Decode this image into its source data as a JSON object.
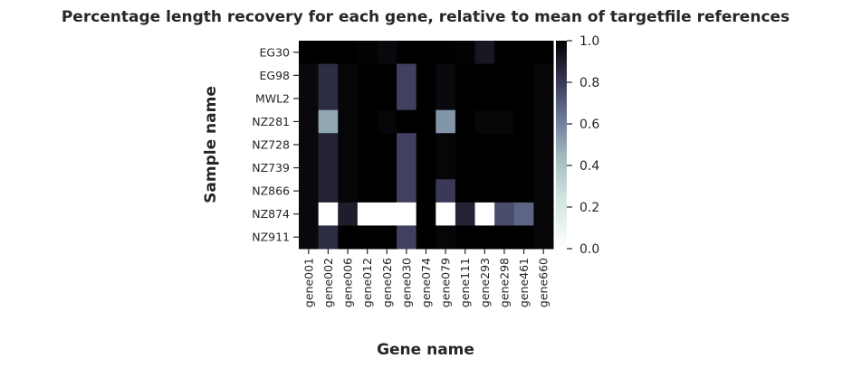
{
  "chart_data": {
    "type": "heatmap",
    "title": "Percentage length recovery for each gene, relative to mean of targetfile references",
    "xlabel": "Gene name",
    "ylabel": "Sample name",
    "x_categories": [
      "gene001",
      "gene002",
      "gene006",
      "gene012",
      "gene026",
      "gene030",
      "gene074",
      "gene079",
      "gene111",
      "gene293",
      "gene298",
      "gene461",
      "gene660"
    ],
    "y_categories": [
      "EG30",
      "EG98",
      "MWL2",
      "NZ281",
      "NZ728",
      "NZ739",
      "NZ866",
      "NZ874",
      "NZ911"
    ],
    "values": [
      [
        1.0,
        1.0,
        1.0,
        0.99,
        0.97,
        1.0,
        1.0,
        1.0,
        0.99,
        0.92,
        1.0,
        1.0,
        1.0
      ],
      [
        0.97,
        0.85,
        0.98,
        1.0,
        1.0,
        0.78,
        1.0,
        0.97,
        1.0,
        1.0,
        1.0,
        1.0,
        0.98
      ],
      [
        0.97,
        0.85,
        0.98,
        1.0,
        1.0,
        0.78,
        1.0,
        0.97,
        1.0,
        1.0,
        1.0,
        1.0,
        0.98
      ],
      [
        0.97,
        0.5,
        0.98,
        1.0,
        0.98,
        1.0,
        1.0,
        0.55,
        1.0,
        0.98,
        0.98,
        1.0,
        0.98
      ],
      [
        0.97,
        0.88,
        0.98,
        1.0,
        1.0,
        0.78,
        1.0,
        0.98,
        1.0,
        1.0,
        1.0,
        1.0,
        0.98
      ],
      [
        0.97,
        0.88,
        0.98,
        1.0,
        1.0,
        0.78,
        1.0,
        0.98,
        1.0,
        1.0,
        1.0,
        1.0,
        0.98
      ],
      [
        0.97,
        0.88,
        0.98,
        1.0,
        1.0,
        0.78,
        1.0,
        0.8,
        1.0,
        1.0,
        1.0,
        1.0,
        0.98
      ],
      [
        0.97,
        0.0,
        0.9,
        0.0,
        0.0,
        0.0,
        1.0,
        0.0,
        0.88,
        0.0,
        0.75,
        0.68,
        0.98
      ],
      [
        0.97,
        0.85,
        1.0,
        1.0,
        1.0,
        0.78,
        1.0,
        0.98,
        1.0,
        1.0,
        1.0,
        1.0,
        0.98
      ]
    ],
    "colorbar": {
      "min": 0.0,
      "max": 1.0,
      "ticks": [
        "0.0",
        "0.2",
        "0.4",
        "0.6",
        "0.8",
        "1.0"
      ]
    },
    "colormap": "bone_r",
    "grid": false
  }
}
